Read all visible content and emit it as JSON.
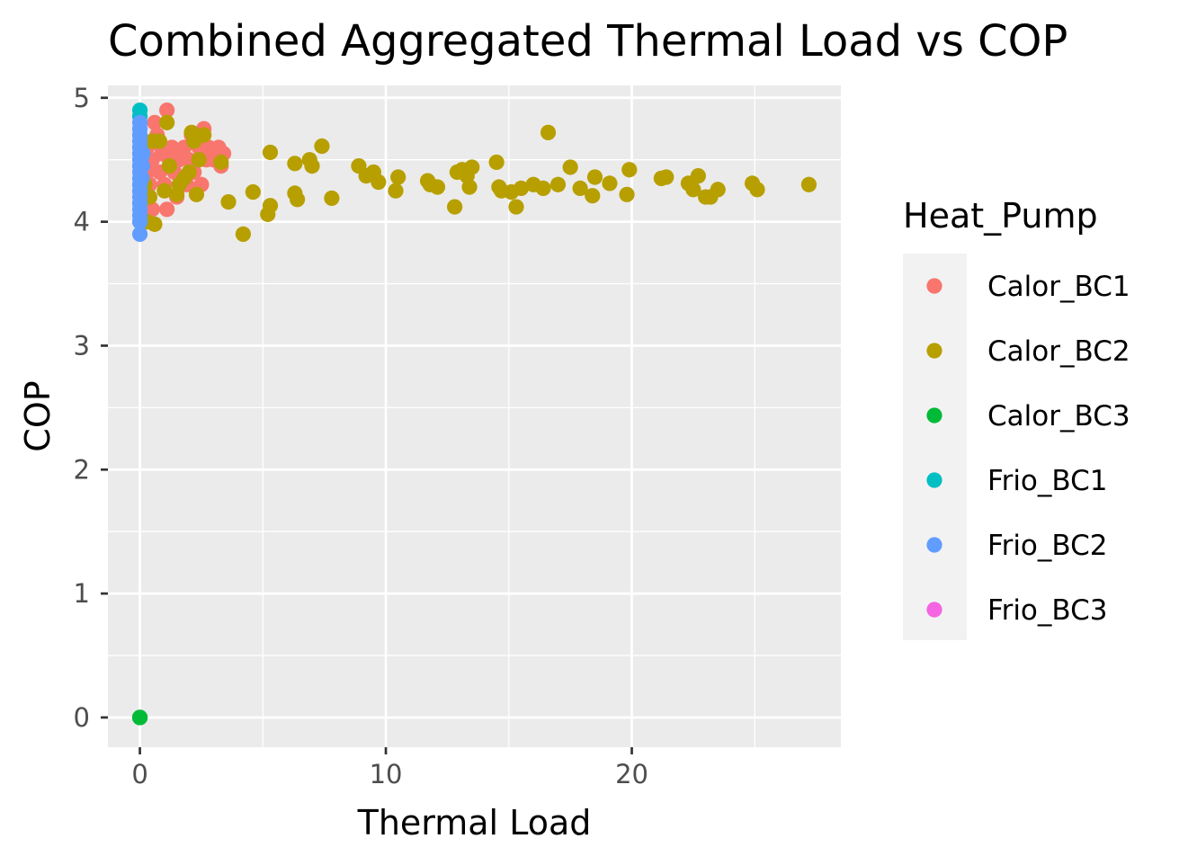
{
  "chart_data": {
    "type": "scatter",
    "title": "Combined Aggregated Thermal Load vs COP",
    "xlabel": "Thermal Load",
    "ylabel": "COP",
    "xlim": [
      -1.3,
      28.5
    ],
    "ylim": [
      -0.24,
      5.1
    ],
    "x_ticks": [
      0,
      10,
      20
    ],
    "y_ticks": [
      0,
      1,
      2,
      3,
      4,
      5
    ],
    "grid": true,
    "legend": {
      "title": "Heat_Pump",
      "position": "right"
    },
    "series": [
      {
        "name": "Calor_BC1",
        "color": "#F8766D",
        "points": [
          [
            0.2,
            4.2
          ],
          [
            0.3,
            4.4
          ],
          [
            0.3,
            4.6
          ],
          [
            0.4,
            4.3
          ],
          [
            0.5,
            4.5
          ],
          [
            0.6,
            4.8
          ],
          [
            0.7,
            4.7
          ],
          [
            0.8,
            4.4
          ],
          [
            0.9,
            4.6
          ],
          [
            1.0,
            4.3
          ],
          [
            1.1,
            4.9
          ],
          [
            1.1,
            4.1
          ],
          [
            1.2,
            4.5
          ],
          [
            1.3,
            4.6
          ],
          [
            1.4,
            4.4
          ],
          [
            1.5,
            4.2
          ],
          [
            1.6,
            4.5
          ],
          [
            1.8,
            4.6
          ],
          [
            1.9,
            4.3
          ],
          [
            2.0,
            4.5
          ],
          [
            2.1,
            4.7
          ],
          [
            2.2,
            4.4
          ],
          [
            2.4,
            4.6
          ],
          [
            2.5,
            4.3
          ],
          [
            2.6,
            4.75
          ],
          [
            2.7,
            4.5
          ],
          [
            2.8,
            4.6
          ],
          [
            3.0,
            4.5
          ],
          [
            3.2,
            4.6
          ],
          [
            3.4,
            4.55
          ],
          [
            0.5,
            4.1
          ],
          [
            0.9,
            4.55
          ],
          [
            1.7,
            4.35
          ],
          [
            2.3,
            4.65
          ],
          [
            3.3,
            4.45
          ]
        ]
      },
      {
        "name": "Calor_BC2",
        "color": "#B79F00",
        "points": [
          [
            0.0,
            4.25
          ],
          [
            0.2,
            4.3
          ],
          [
            0.3,
            4.0
          ],
          [
            0.4,
            4.2
          ],
          [
            0.5,
            4.65
          ],
          [
            0.6,
            3.98
          ],
          [
            0.8,
            4.65
          ],
          [
            1.0,
            4.25
          ],
          [
            1.1,
            4.8
          ],
          [
            1.2,
            4.45
          ],
          [
            1.5,
            4.22
          ],
          [
            1.6,
            4.3
          ],
          [
            1.8,
            4.35
          ],
          [
            2.0,
            4.4
          ],
          [
            2.1,
            4.72
          ],
          [
            2.2,
            4.65
          ],
          [
            2.3,
            4.22
          ],
          [
            2.4,
            4.5
          ],
          [
            2.6,
            4.7
          ],
          [
            3.3,
            4.48
          ],
          [
            3.6,
            4.16
          ],
          [
            4.2,
            3.9
          ],
          [
            4.6,
            4.24
          ],
          [
            5.2,
            4.06
          ],
          [
            5.3,
            4.13
          ],
          [
            5.3,
            4.56
          ],
          [
            6.3,
            4.23
          ],
          [
            6.4,
            4.18
          ],
          [
            6.3,
            4.47
          ],
          [
            6.9,
            4.5
          ],
          [
            7.0,
            4.45
          ],
          [
            7.4,
            4.61
          ],
          [
            7.8,
            4.19
          ],
          [
            8.9,
            4.45
          ],
          [
            9.2,
            4.37
          ],
          [
            9.5,
            4.4
          ],
          [
            9.7,
            4.32
          ],
          [
            10.4,
            4.25
          ],
          [
            10.5,
            4.36
          ],
          [
            11.7,
            4.33
          ],
          [
            11.8,
            4.3
          ],
          [
            12.1,
            4.28
          ],
          [
            12.8,
            4.12
          ],
          [
            12.9,
            4.4
          ],
          [
            13.1,
            4.42
          ],
          [
            13.3,
            4.37
          ],
          [
            13.4,
            4.28
          ],
          [
            13.5,
            4.44
          ],
          [
            14.5,
            4.48
          ],
          [
            14.6,
            4.28
          ],
          [
            14.7,
            4.25
          ],
          [
            15.1,
            4.24
          ],
          [
            15.3,
            4.12
          ],
          [
            15.5,
            4.27
          ],
          [
            16.0,
            4.3
          ],
          [
            16.4,
            4.27
          ],
          [
            16.6,
            4.72
          ],
          [
            17.0,
            4.3
          ],
          [
            17.5,
            4.44
          ],
          [
            17.9,
            4.27
          ],
          [
            18.4,
            4.21
          ],
          [
            18.5,
            4.36
          ],
          [
            19.1,
            4.31
          ],
          [
            19.8,
            4.22
          ],
          [
            19.9,
            4.42
          ],
          [
            21.2,
            4.35
          ],
          [
            21.4,
            4.36
          ],
          [
            22.3,
            4.31
          ],
          [
            22.5,
            4.26
          ],
          [
            22.7,
            4.37
          ],
          [
            23.0,
            4.2
          ],
          [
            23.2,
            4.2
          ],
          [
            23.5,
            4.26
          ],
          [
            24.9,
            4.31
          ],
          [
            25.1,
            4.26
          ],
          [
            27.2,
            4.3
          ]
        ]
      },
      {
        "name": "Calor_BC3",
        "color": "#00BA38",
        "points": [
          [
            0.0,
            0.0
          ],
          [
            0.0,
            0.0
          ],
          [
            0.0,
            0.0
          ],
          [
            0.0,
            0.0
          ]
        ]
      },
      {
        "name": "Frio_BC1",
        "color": "#00BFC4",
        "points": [
          [
            0.0,
            4.9
          ],
          [
            0.0,
            4.85
          ],
          [
            0.0,
            4.6
          ],
          [
            0.0,
            4.45
          ],
          [
            0.0,
            4.3
          ],
          [
            0.0,
            4.15
          ],
          [
            0.0,
            4.0
          ],
          [
            0.0,
            4.55
          ],
          [
            0.0,
            4.7
          ]
        ]
      },
      {
        "name": "Frio_BC2",
        "color": "#619CFF",
        "points": [
          [
            0.0,
            3.9
          ],
          [
            0.0,
            4.0
          ],
          [
            0.0,
            4.05
          ],
          [
            0.0,
            4.1
          ],
          [
            0.0,
            4.15
          ],
          [
            0.0,
            4.2
          ],
          [
            0.0,
            4.25
          ],
          [
            0.0,
            4.3
          ],
          [
            0.0,
            4.35
          ],
          [
            0.0,
            4.4
          ],
          [
            0.0,
            4.45
          ],
          [
            0.0,
            4.5
          ],
          [
            0.0,
            4.55
          ],
          [
            0.0,
            4.6
          ],
          [
            0.0,
            4.65
          ],
          [
            0.0,
            4.7
          ],
          [
            0.0,
            4.75
          ],
          [
            0.0,
            4.8
          ],
          [
            0.05,
            4.5
          ],
          [
            0.1,
            4.45
          ],
          [
            0.08,
            4.35
          ],
          [
            0.12,
            4.55
          ]
        ]
      },
      {
        "name": "Frio_BC3",
        "color": "#F564E3",
        "points": []
      }
    ]
  }
}
